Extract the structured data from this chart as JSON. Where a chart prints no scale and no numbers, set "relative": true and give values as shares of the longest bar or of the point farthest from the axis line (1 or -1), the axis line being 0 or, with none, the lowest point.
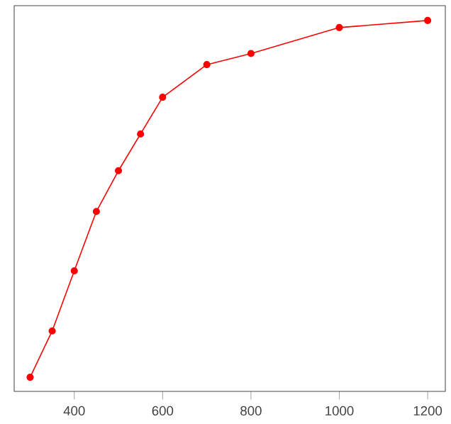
{
  "chart_data": {
    "type": "line",
    "relative": true,
    "x": [
      300,
      350,
      400,
      450,
      500,
      550,
      600,
      700,
      800,
      1000,
      1200
    ],
    "series": [
      {
        "color": "#ff0000",
        "values": [
          0.038,
          0.163,
          0.325,
          0.485,
          0.595,
          0.694,
          0.793,
          0.881,
          0.911,
          0.981,
          1
        ]
      }
    ],
    "xlim": [
      264,
      1240
    ],
    "xticks": [
      400,
      600,
      800,
      1000,
      1200
    ],
    "marker": "circle",
    "line_style": "solid"
  }
}
